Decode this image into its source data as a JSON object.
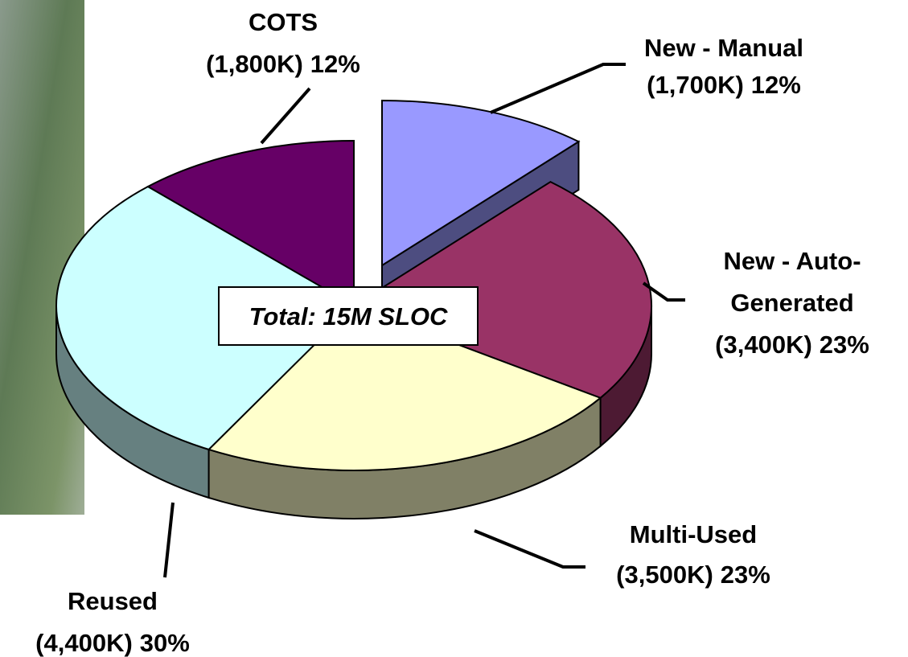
{
  "chart_data": {
    "type": "pie3d",
    "annotation": "Total:  15M SLOC",
    "categories": [
      [
        "New - Manual"
      ],
      [
        "New - Auto-",
        "Generated"
      ],
      [
        "Multi-Used"
      ],
      [
        "Reused"
      ],
      [
        "COTS"
      ]
    ],
    "values": [
      1700,
      3400,
      3500,
      4400,
      1800
    ],
    "value_labels": [
      "(1,700K)",
      "(3,400K)",
      "(3,500K)",
      "(4,400K)",
      "(1,800K)"
    ],
    "percents": [
      12,
      23,
      23,
      30,
      12
    ],
    "percent_labels": [
      "12%",
      "23%",
      "23%",
      "30%",
      "12%"
    ],
    "colors": [
      "#9999ff",
      "#993366",
      "#ffffcc",
      "#ccffff",
      "#660066"
    ],
    "side_colors": [
      "#4d4d80",
      "#4d1a33",
      "#808066",
      "#668080",
      "#330033"
    ],
    "exploded": [
      true,
      false,
      false,
      false,
      false
    ]
  }
}
